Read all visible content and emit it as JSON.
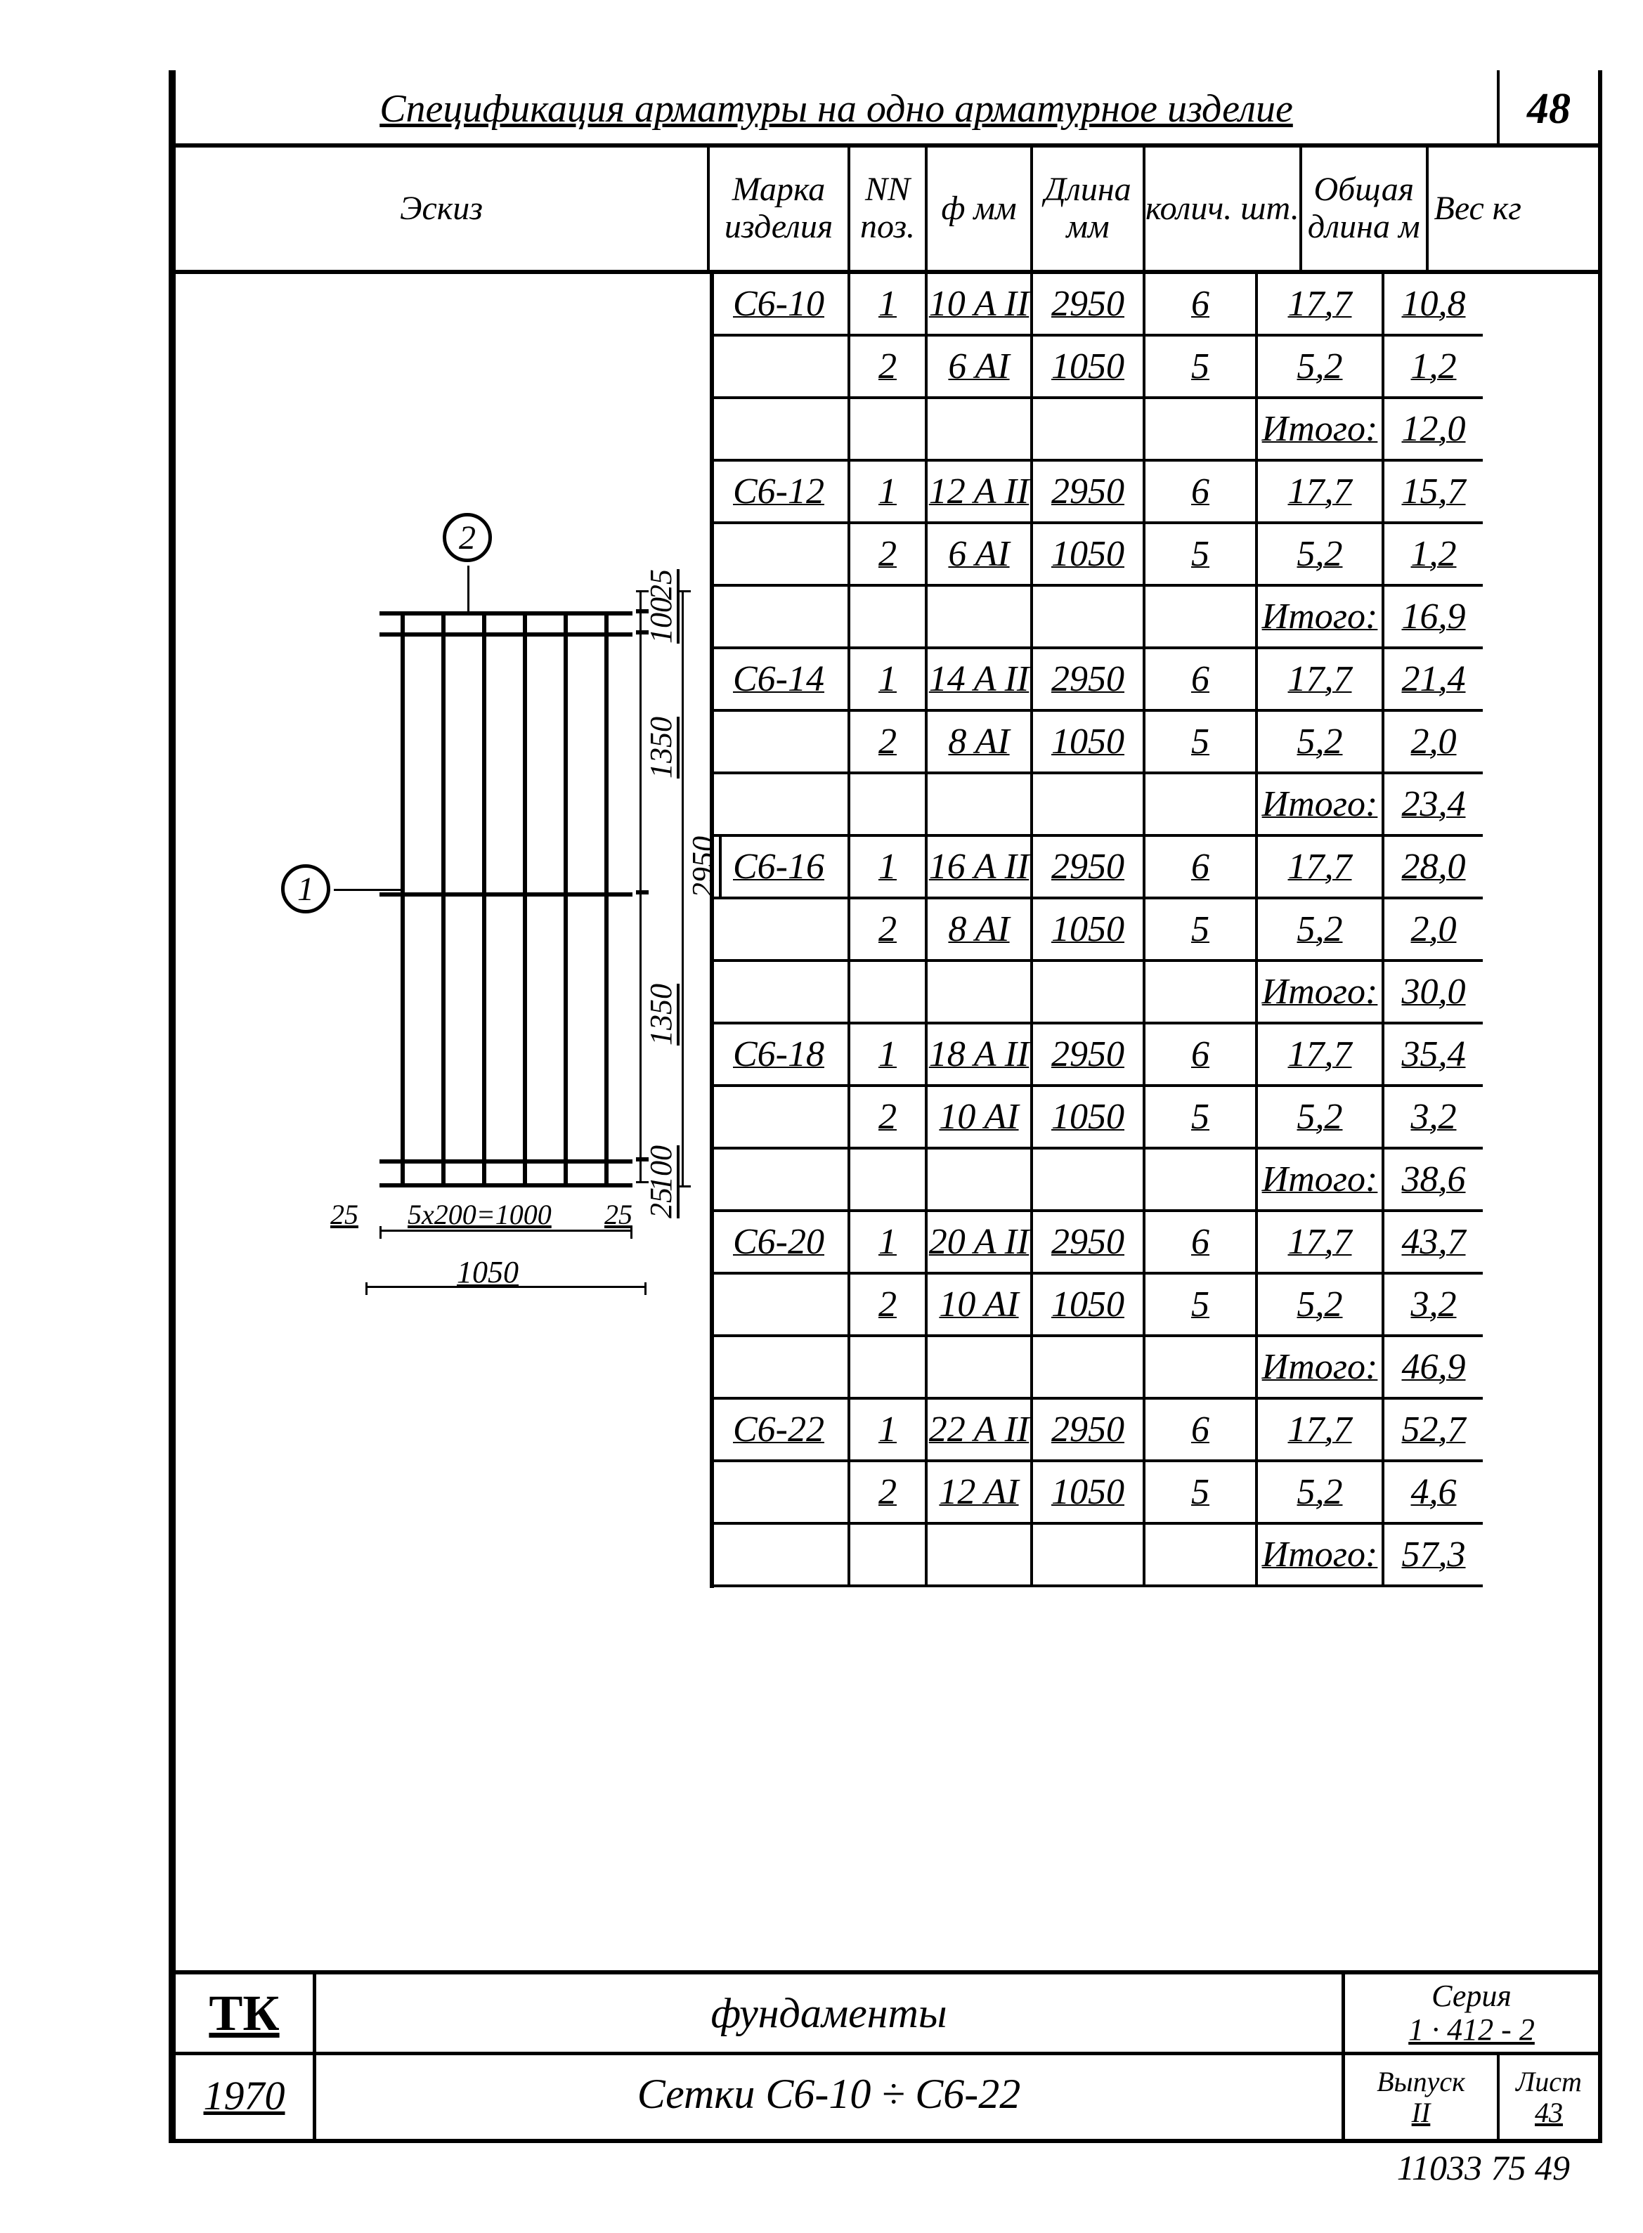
{
  "page_number": "48",
  "title": "Спецификация арматуры на одно арматурное изделие",
  "headers": {
    "eskiz": "Эскиз",
    "marka": "Марка изделия",
    "nn": "NN поз.",
    "phi": "ф мм",
    "dlina": "Длина мм",
    "kolich": "колич. шт.",
    "obshaya": "Общая длина м",
    "ves": "Вес кг"
  },
  "itogo_label": "Итого:",
  "rows": [
    {
      "marka": "С6-10",
      "nn": "1",
      "phi": "10 A II",
      "dlina": "2950",
      "kol": "6",
      "obsh": "17,7",
      "ves": "10,8"
    },
    {
      "marka": "",
      "nn": "2",
      "phi": "6 AI",
      "dlina": "1050",
      "kol": "5",
      "obsh": "5,2",
      "ves": "1,2"
    },
    {
      "marka": "",
      "nn": "",
      "phi": "",
      "dlina": "",
      "kol": "",
      "obsh": "Итого:",
      "ves": "12,0"
    },
    {
      "marka": "С6-12",
      "nn": "1",
      "phi": "12 A II",
      "dlina": "2950",
      "kol": "6",
      "obsh": "17,7",
      "ves": "15,7"
    },
    {
      "marka": "",
      "nn": "2",
      "phi": "6 AI",
      "dlina": "1050",
      "kol": "5",
      "obsh": "5,2",
      "ves": "1,2"
    },
    {
      "marka": "",
      "nn": "",
      "phi": "",
      "dlina": "",
      "kol": "",
      "obsh": "Итого:",
      "ves": "16,9"
    },
    {
      "marka": "С6-14",
      "nn": "1",
      "phi": "14 A II",
      "dlina": "2950",
      "kol": "6",
      "obsh": "17,7",
      "ves": "21,4"
    },
    {
      "marka": "",
      "nn": "2",
      "phi": "8 AI",
      "dlina": "1050",
      "kol": "5",
      "obsh": "5,2",
      "ves": "2,0"
    },
    {
      "marka": "",
      "nn": "",
      "phi": "",
      "dlina": "",
      "kol": "",
      "obsh": "Итого:",
      "ves": "23,4"
    },
    {
      "marka": "С6-16",
      "nn": "1",
      "phi": "16 A II",
      "dlina": "2950",
      "kol": "6",
      "obsh": "17,7",
      "ves": "28,0"
    },
    {
      "marka": "",
      "nn": "2",
      "phi": "8 AI",
      "dlina": "1050",
      "kol": "5",
      "obsh": "5,2",
      "ves": "2,0"
    },
    {
      "marka": "",
      "nn": "",
      "phi": "",
      "dlina": "",
      "kol": "",
      "obsh": "Итого:",
      "ves": "30,0"
    },
    {
      "marka": "С6-18",
      "nn": "1",
      "phi": "18 A II",
      "dlina": "2950",
      "kol": "6",
      "obsh": "17,7",
      "ves": "35,4"
    },
    {
      "marka": "",
      "nn": "2",
      "phi": "10 AI",
      "dlina": "1050",
      "kol": "5",
      "obsh": "5,2",
      "ves": "3,2"
    },
    {
      "marka": "",
      "nn": "",
      "phi": "",
      "dlina": "",
      "kol": "",
      "obsh": "Итого:",
      "ves": "38,6"
    },
    {
      "marka": "С6-20",
      "nn": "1",
      "phi": "20 A II",
      "dlina": "2950",
      "kol": "6",
      "obsh": "17,7",
      "ves": "43,7"
    },
    {
      "marka": "",
      "nn": "2",
      "phi": "10 AI",
      "dlina": "1050",
      "kol": "5",
      "obsh": "5,2",
      "ves": "3,2"
    },
    {
      "marka": "",
      "nn": "",
      "phi": "",
      "dlina": "",
      "kol": "",
      "obsh": "Итого:",
      "ves": "46,9"
    },
    {
      "marka": "С6-22",
      "nn": "1",
      "phi": "22 A II",
      "dlina": "2950",
      "kol": "6",
      "obsh": "17,7",
      "ves": "52,7"
    },
    {
      "marka": "",
      "nn": "2",
      "phi": "12 AI",
      "dlina": "1050",
      "kol": "5",
      "obsh": "5,2",
      "ves": "4,6"
    },
    {
      "marka": "",
      "nn": "",
      "phi": "",
      "dlina": "",
      "kol": "",
      "obsh": "Итого:",
      "ves": "57,3"
    }
  ],
  "sketch": {
    "callout1": "1",
    "callout2": "2",
    "dim_25_top": "25",
    "dim_100": "100",
    "dim_1350_a": "1350",
    "dim_1350_b": "1350",
    "dim_2950": "2950",
    "dim_25_bot": "25",
    "dim_100_bot": "100",
    "dim_25_l": "25",
    "dim_5x200": "5x200=1000",
    "dim_25_r": "25",
    "dim_1050": "1050"
  },
  "title_block": {
    "tk": "ТК",
    "year": "1970",
    "line1": "фундаменты",
    "line2": "Сетки  С6-10 ÷ С6-22",
    "seria_label": "Серия",
    "seria": "1 · 412 - 2",
    "vypusk_label": "Выпуск",
    "vypusk": "II",
    "list_label": "Лист",
    "list": "43"
  },
  "footer": "11033 75   49",
  "colors": {
    "ink": "#000000",
    "paper": "#ffffff"
  }
}
